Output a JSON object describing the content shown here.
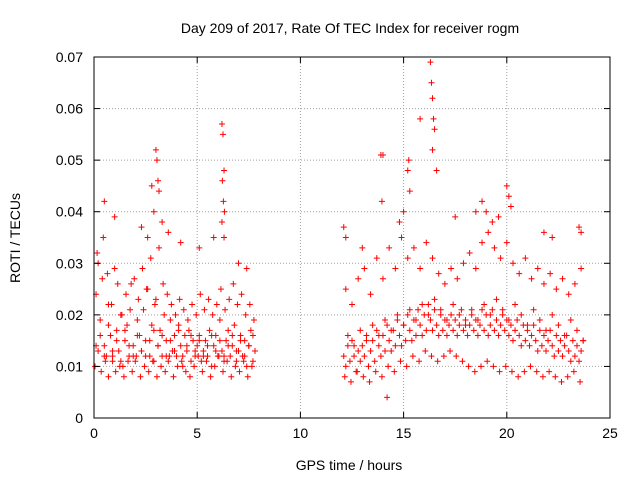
{
  "chart_data": {
    "type": "scatter",
    "title": "Day 209 of 2017, Rate Of TEC Index for receiver rogm",
    "xlabel": "GPS time / hours",
    "ylabel": "ROTI / TECUs",
    "xlim": [
      0,
      25
    ],
    "ylim": [
      0,
      0.07
    ],
    "xticks": [
      "0",
      "5",
      "10",
      "15",
      "20",
      "25"
    ],
    "yticks": [
      "0",
      "0.01",
      "0.02",
      "0.03",
      "0.04",
      "0.05",
      "0.06",
      "0.07"
    ],
    "grid": true,
    "legend": "none",
    "marker": "+",
    "color": "#ff0000",
    "series": [
      {
        "x": [
          0.1,
          0.2,
          0.3,
          0.4,
          0.5,
          0.6,
          0.7,
          0.8,
          0.9,
          1.0,
          1.1,
          1.2,
          1.3,
          1.4,
          1.5,
          1.6,
          1.7,
          1.8,
          1.9,
          2.0,
          2.1,
          2.2,
          2.3,
          2.4,
          2.5,
          2.6,
          2.7,
          2.8,
          2.9,
          3.0,
          3.1,
          3.2,
          3.3,
          3.4,
          3.5,
          3.6,
          3.7,
          3.8,
          3.9,
          4.0,
          4.1,
          4.2,
          4.3,
          4.4,
          4.5,
          4.6,
          4.7,
          4.8,
          4.9,
          5.0,
          5.1,
          5.2,
          5.3,
          5.4,
          5.5,
          5.6,
          5.7,
          5.8,
          5.9,
          6.0,
          6.1,
          6.2,
          6.3,
          6.4,
          6.5,
          6.6,
          6.7,
          6.8,
          6.9,
          7.0,
          7.1,
          7.2,
          7.3,
          7.4,
          7.5,
          7.6,
          7.7,
          7.8,
          0.05,
          0.2,
          0.35,
          0.55,
          0.7,
          0.9,
          1.05,
          1.25,
          1.45,
          1.65,
          1.85,
          2.05,
          2.25,
          2.45,
          2.65,
          2.85,
          3.05,
          3.25,
          3.45,
          3.65,
          3.85,
          4.05,
          4.25,
          4.45,
          4.65,
          4.85,
          5.05,
          5.25,
          5.45,
          5.65,
          5.85,
          6.05,
          6.25,
          6.45,
          6.65,
          6.85,
          7.05,
          7.25,
          7.45,
          7.65,
          0.15,
          0.45,
          0.65,
          0.85,
          1.15,
          1.35,
          1.55,
          1.75,
          1.95,
          2.15,
          2.35,
          2.55,
          2.75,
          2.95,
          3.15,
          3.35,
          3.55,
          3.75,
          3.95,
          4.15,
          4.35,
          4.55,
          4.75,
          4.95,
          5.15,
          5.35,
          5.55,
          5.75,
          5.95,
          6.15,
          6.35,
          6.55,
          6.75,
          6.95,
          7.15,
          7.35,
          7.55,
          7.75,
          0.1,
          0.3,
          0.5,
          0.7,
          0.9,
          1.1,
          1.3,
          1.5,
          1.7,
          1.9,
          2.1,
          2.3,
          2.5,
          2.7,
          2.9,
          3.1,
          3.3,
          3.5,
          3.7,
          3.9,
          4.1,
          4.3,
          4.5,
          4.7,
          4.9,
          5.1,
          5.3,
          5.5,
          5.7,
          5.9,
          6.1,
          6.3,
          6.5,
          6.7,
          6.9,
          7.1,
          7.3,
          7.5,
          7.7,
          3.0,
          3.05,
          3.1,
          3.15,
          2.8,
          2.9,
          3.3,
          6.2,
          6.25,
          6.3,
          6.22,
          6.27,
          6.32,
          6.2,
          6.3,
          0.5,
          1.0,
          2.3,
          2.6,
          3.6,
          4.2,
          5.1,
          5.8,
          7.0,
          7.4
        ],
        "y": [
          0.024,
          0.03,
          0.019,
          0.027,
          0.014,
          0.012,
          0.022,
          0.016,
          0.011,
          0.029,
          0.017,
          0.013,
          0.02,
          0.01,
          0.015,
          0.018,
          0.012,
          0.026,
          0.014,
          0.011,
          0.019,
          0.016,
          0.013,
          0.021,
          0.012,
          0.025,
          0.015,
          0.018,
          0.011,
          0.023,
          0.014,
          0.017,
          0.012,
          0.02,
          0.015,
          0.011,
          0.019,
          0.013,
          0.016,
          0.012,
          0.018,
          0.014,
          0.01,
          0.016,
          0.013,
          0.017,
          0.011,
          0.015,
          0.012,
          0.014,
          0.016,
          0.011,
          0.013,
          0.015,
          0.012,
          0.017,
          0.01,
          0.014,
          0.016,
          0.012,
          0.019,
          0.013,
          0.011,
          0.015,
          0.017,
          0.012,
          0.014,
          0.018,
          0.011,
          0.013,
          0.016,
          0.012,
          0.015,
          0.01,
          0.014,
          0.017,
          0.011,
          0.013,
          0.01,
          0.013,
          0.009,
          0.011,
          0.008,
          0.012,
          0.009,
          0.01,
          0.008,
          0.011,
          0.009,
          0.012,
          0.008,
          0.01,
          0.009,
          0.011,
          0.008,
          0.01,
          0.009,
          0.012,
          0.008,
          0.01,
          0.011,
          0.009,
          0.008,
          0.01,
          0.012,
          0.009,
          0.011,
          0.008,
          0.01,
          0.012,
          0.009,
          0.011,
          0.008,
          0.01,
          0.009,
          0.011,
          0.008,
          0.01,
          0.032,
          0.035,
          0.028,
          0.022,
          0.026,
          0.02,
          0.024,
          0.021,
          0.027,
          0.023,
          0.029,
          0.025,
          0.031,
          0.022,
          0.033,
          0.026,
          0.024,
          0.022,
          0.02,
          0.023,
          0.021,
          0.019,
          0.022,
          0.02,
          0.024,
          0.021,
          0.023,
          0.02,
          0.022,
          0.025,
          0.021,
          0.023,
          0.026,
          0.022,
          0.024,
          0.02,
          0.022,
          0.019,
          0.014,
          0.016,
          0.012,
          0.018,
          0.013,
          0.015,
          0.011,
          0.017,
          0.014,
          0.012,
          0.016,
          0.013,
          0.015,
          0.012,
          0.017,
          0.014,
          0.016,
          0.012,
          0.015,
          0.013,
          0.017,
          0.012,
          0.014,
          0.016,
          0.013,
          0.015,
          0.012,
          0.014,
          0.016,
          0.013,
          0.015,
          0.012,
          0.014,
          0.016,
          0.013,
          0.015,
          0.012,
          0.014,
          0.016,
          0.052,
          0.05,
          0.046,
          0.044,
          0.045,
          0.04,
          0.038,
          0.057,
          0.055,
          0.048,
          0.046,
          0.042,
          0.04,
          0.038,
          0.035,
          0.042,
          0.039,
          0.037,
          0.035,
          0.036,
          0.034,
          0.033,
          0.035,
          0.03,
          0.029
        ]
      },
      {
        "x": [
          12.1,
          12.2,
          12.3,
          12.4,
          12.5,
          12.6,
          12.7,
          12.8,
          12.9,
          13.0,
          13.1,
          13.2,
          13.3,
          13.4,
          13.5,
          13.6,
          13.7,
          13.8,
          13.9,
          14.0,
          14.1,
          14.2,
          14.3,
          14.4,
          14.5,
          14.6,
          14.7,
          14.8,
          14.9,
          15.0,
          15.1,
          15.2,
          15.3,
          15.4,
          15.5,
          15.6,
          15.7,
          15.8,
          15.9,
          16.0,
          16.1,
          16.2,
          16.3,
          16.4,
          16.5,
          16.6,
          16.7,
          16.8,
          16.9,
          17.0,
          17.1,
          17.2,
          17.3,
          17.4,
          17.5,
          17.6,
          17.7,
          17.8,
          17.9,
          18.0,
          18.1,
          18.2,
          18.3,
          18.4,
          18.5,
          18.6,
          18.7,
          18.8,
          18.9,
          19.0,
          19.1,
          19.2,
          19.3,
          19.4,
          19.5,
          19.6,
          19.7,
          19.8,
          19.9,
          20.0,
          20.1,
          20.2,
          20.3,
          20.4,
          20.5,
          20.6,
          20.7,
          20.8,
          20.9,
          21.0,
          21.1,
          21.2,
          21.3,
          21.4,
          21.5,
          21.6,
          21.7,
          21.8,
          21.9,
          22.0,
          22.1,
          22.2,
          22.3,
          22.4,
          22.5,
          22.6,
          22.7,
          22.8,
          22.9,
          23.0,
          23.1,
          23.2,
          23.3,
          23.4,
          23.5,
          23.6,
          23.7,
          12.15,
          12.45,
          12.75,
          13.05,
          13.35,
          13.65,
          13.95,
          14.25,
          14.55,
          14.85,
          15.15,
          15.45,
          15.75,
          16.05,
          16.35,
          16.65,
          16.95,
          17.25,
          17.55,
          17.85,
          18.15,
          18.45,
          18.75,
          19.05,
          19.35,
          19.65,
          19.95,
          20.25,
          20.55,
          20.85,
          21.15,
          21.45,
          21.75,
          22.05,
          22.35,
          22.65,
          22.95,
          23.25,
          23.55,
          12.2,
          12.5,
          12.8,
          13.1,
          13.4,
          13.7,
          14.0,
          14.3,
          14.6,
          14.9,
          15.2,
          15.5,
          15.8,
          16.1,
          16.4,
          16.7,
          17.0,
          17.3,
          17.6,
          17.9,
          18.2,
          18.5,
          18.8,
          19.1,
          19.4,
          19.7,
          20.0,
          20.3,
          20.6,
          20.9,
          21.2,
          21.5,
          21.8,
          22.1,
          22.4,
          22.7,
          23.0,
          23.3,
          23.6,
          12.3,
          12.6,
          12.9,
          13.2,
          13.5,
          13.8,
          14.1,
          14.4,
          14.7,
          15.0,
          15.3,
          15.6,
          15.9,
          16.2,
          16.5,
          16.8,
          17.1,
          17.4,
          17.7,
          18.0,
          18.3,
          18.6,
          18.9,
          19.2,
          19.5,
          19.8,
          20.1,
          20.4,
          20.7,
          21.0,
          21.3,
          21.6,
          21.9,
          22.2,
          22.5,
          22.8,
          23.1,
          23.4,
          23.7,
          13.9,
          14.0,
          13.95,
          15.2,
          15.25,
          15.3,
          16.3,
          16.35,
          16.4,
          16.45,
          16.5,
          16.4,
          16.6,
          15.8,
          18.8,
          20.0,
          20.1,
          20.2,
          19.0,
          19.3,
          19.6,
          21.8,
          22.2,
          23.5,
          23.6,
          12.1,
          12.2,
          13.0,
          14.2,
          14.8,
          15.0,
          17.5,
          18.5
        ],
        "y": [
          0.012,
          0.01,
          0.014,
          0.011,
          0.015,
          0.012,
          0.009,
          0.013,
          0.011,
          0.014,
          0.012,
          0.016,
          0.01,
          0.013,
          0.015,
          0.011,
          0.017,
          0.014,
          0.012,
          0.016,
          0.013,
          0.018,
          0.015,
          0.013,
          0.017,
          0.014,
          0.019,
          0.016,
          0.014,
          0.018,
          0.015,
          0.02,
          0.017,
          0.015,
          0.019,
          0.016,
          0.021,
          0.018,
          0.016,
          0.02,
          0.017,
          0.022,
          0.019,
          0.017,
          0.021,
          0.018,
          0.016,
          0.02,
          0.017,
          0.019,
          0.016,
          0.018,
          0.02,
          0.017,
          0.019,
          0.016,
          0.018,
          0.021,
          0.017,
          0.019,
          0.016,
          0.018,
          0.02,
          0.017,
          0.019,
          0.016,
          0.018,
          0.021,
          0.017,
          0.02,
          0.016,
          0.018,
          0.021,
          0.017,
          0.019,
          0.016,
          0.018,
          0.02,
          0.017,
          0.019,
          0.016,
          0.018,
          0.015,
          0.017,
          0.019,
          0.016,
          0.014,
          0.018,
          0.015,
          0.017,
          0.014,
          0.016,
          0.018,
          0.015,
          0.013,
          0.017,
          0.014,
          0.016,
          0.013,
          0.015,
          0.017,
          0.014,
          0.012,
          0.016,
          0.013,
          0.015,
          0.012,
          0.014,
          0.016,
          0.013,
          0.011,
          0.015,
          0.012,
          0.014,
          0.011,
          0.013,
          0.015,
          0.008,
          0.007,
          0.009,
          0.008,
          0.007,
          0.009,
          0.008,
          0.01,
          0.009,
          0.011,
          0.01,
          0.012,
          0.011,
          0.013,
          0.012,
          0.011,
          0.012,
          0.013,
          0.012,
          0.011,
          0.01,
          0.009,
          0.01,
          0.011,
          0.01,
          0.009,
          0.01,
          0.009,
          0.008,
          0.009,
          0.01,
          0.009,
          0.008,
          0.009,
          0.008,
          0.007,
          0.008,
          0.009,
          0.007,
          0.025,
          0.022,
          0.027,
          0.029,
          0.024,
          0.031,
          0.027,
          0.033,
          0.029,
          0.035,
          0.031,
          0.033,
          0.029,
          0.034,
          0.031,
          0.028,
          0.026,
          0.029,
          0.027,
          0.03,
          0.032,
          0.029,
          0.034,
          0.036,
          0.033,
          0.031,
          0.034,
          0.03,
          0.028,
          0.031,
          0.027,
          0.029,
          0.026,
          0.028,
          0.025,
          0.027,
          0.024,
          0.026,
          0.029,
          0.016,
          0.014,
          0.017,
          0.015,
          0.018,
          0.016,
          0.019,
          0.017,
          0.02,
          0.018,
          0.021,
          0.019,
          0.022,
          0.02,
          0.023,
          0.021,
          0.019,
          0.022,
          0.02,
          0.018,
          0.021,
          0.019,
          0.022,
          0.02,
          0.023,
          0.021,
          0.019,
          0.022,
          0.02,
          0.018,
          0.021,
          0.019,
          0.017,
          0.02,
          0.018,
          0.016,
          0.019,
          0.017,
          0.015,
          0.051,
          0.051,
          0.042,
          0.048,
          0.05,
          0.044,
          0.069,
          0.065,
          0.062,
          0.058,
          0.056,
          0.052,
          0.048,
          0.058,
          0.042,
          0.045,
          0.043,
          0.041,
          0.04,
          0.038,
          0.039,
          0.036,
          0.035,
          0.037,
          0.036,
          0.037,
          0.035,
          0.033,
          0.004,
          0.038,
          0.04,
          0.039,
          0.04
        ]
      }
    ]
  }
}
